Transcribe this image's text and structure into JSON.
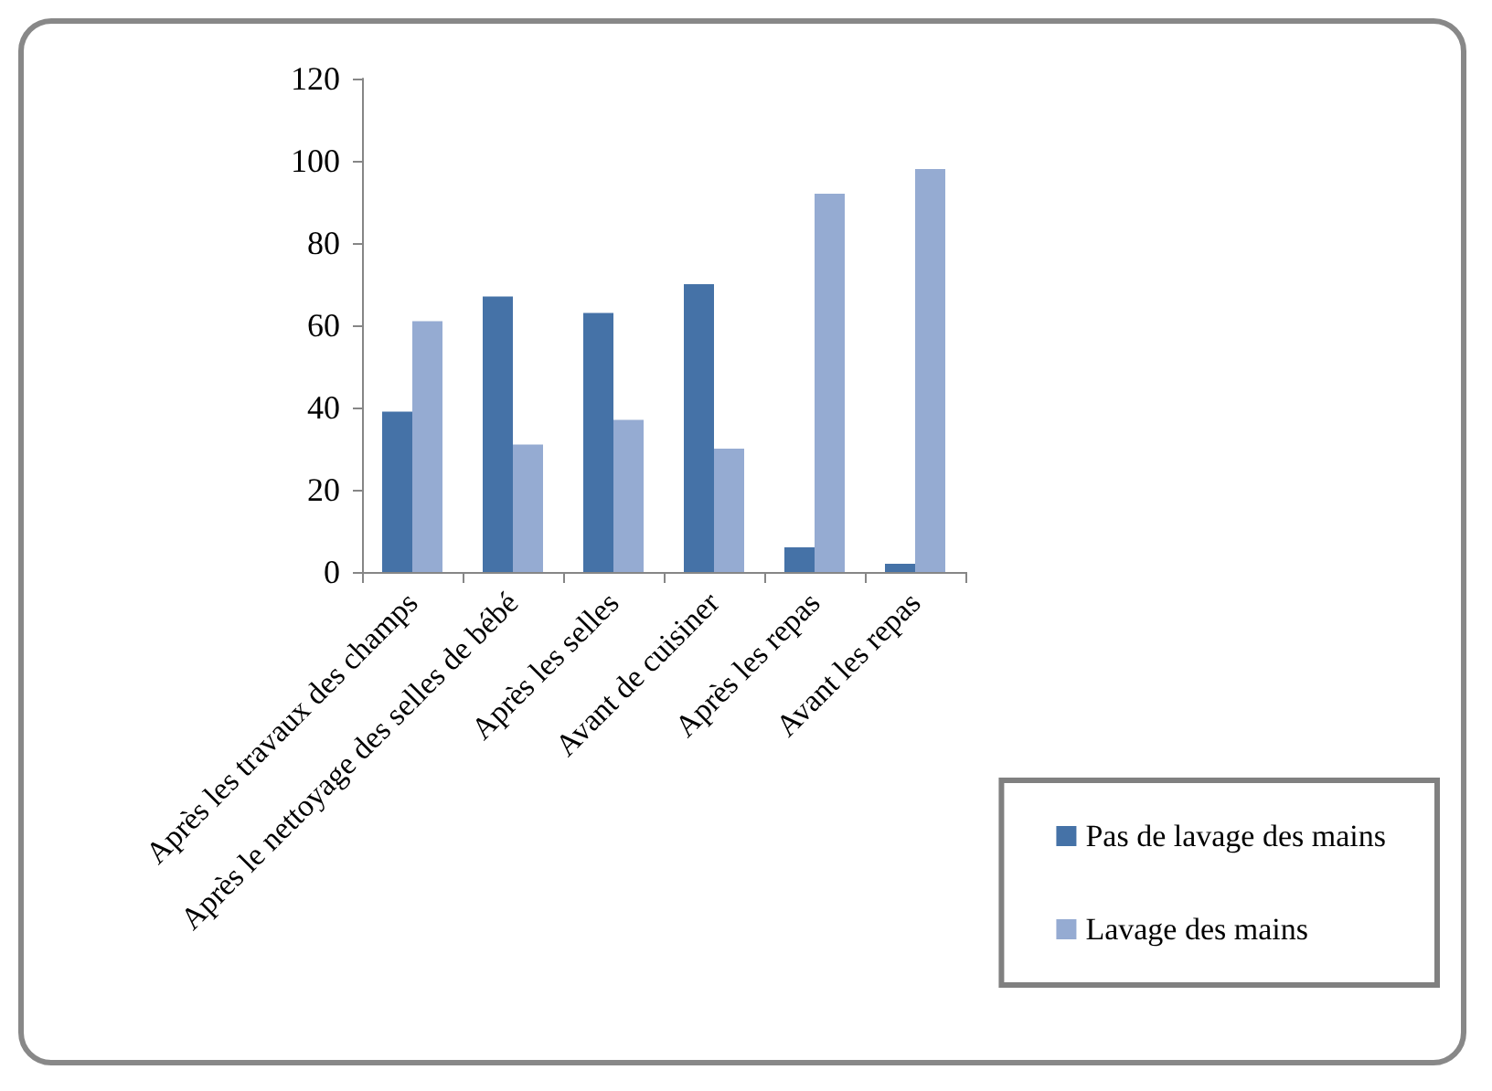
{
  "chart_data": {
    "type": "bar",
    "categories": [
      "Après les travaux des champs",
      "Après le nettoyage des selles de bébé",
      "Après les selles",
      "Avant de cuisiner",
      "Après les repas",
      "Avant les repas"
    ],
    "series": [
      {
        "name": "Pas de lavage des mains",
        "color": "#4572a7",
        "values": [
          39,
          67,
          63,
          70,
          6,
          2
        ]
      },
      {
        "name": "Lavage des mains",
        "color": "#95abd2",
        "values": [
          61,
          31,
          37,
          30,
          92,
          98
        ]
      }
    ],
    "ylim": [
      0,
      120
    ],
    "yticks": [
      0,
      20,
      40,
      60,
      80,
      100,
      120
    ],
    "grid": false,
    "legend": "bottom right"
  }
}
